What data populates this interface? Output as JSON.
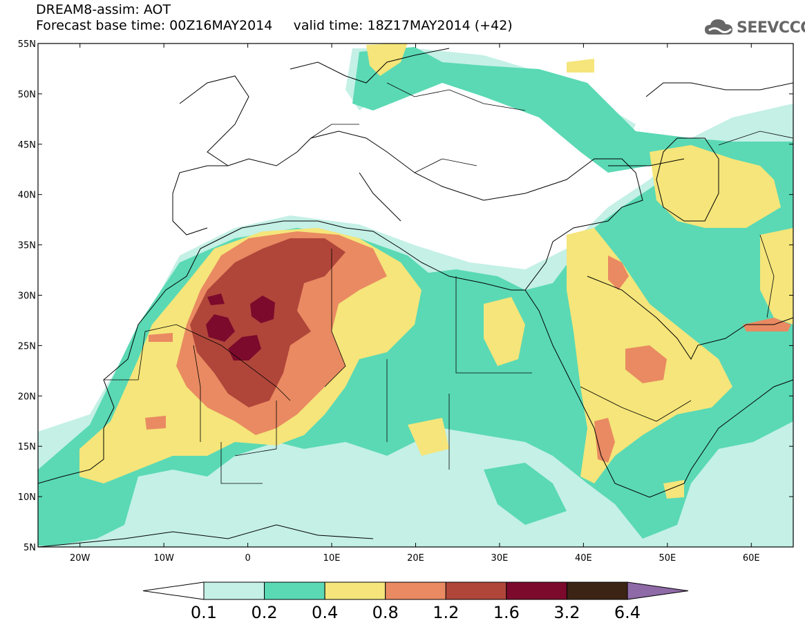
{
  "header": {
    "title_line1": "DREAM8-assim: AOT",
    "title_line2": "Forecast base time: 00Z16MAY2014     valid time: 18Z17MAY2014 (+42)"
  },
  "logo": {
    "text": "SEEVCCC",
    "icon": "cloud-icon"
  },
  "map": {
    "lon_range": [
      -25,
      65
    ],
    "lat_range": [
      5,
      55
    ],
    "lat_ticks": [
      {
        "value": 55,
        "label": "55N"
      },
      {
        "value": 50,
        "label": "50N"
      },
      {
        "value": 45,
        "label": "45N"
      },
      {
        "value": 40,
        "label": "40N"
      },
      {
        "value": 35,
        "label": "35N"
      },
      {
        "value": 30,
        "label": "30N"
      },
      {
        "value": 25,
        "label": "25N"
      },
      {
        "value": 20,
        "label": "20N"
      },
      {
        "value": 15,
        "label": "15N"
      },
      {
        "value": 10,
        "label": "10N"
      },
      {
        "value": 5,
        "label": "5N"
      }
    ],
    "lon_ticks": [
      {
        "value": -20,
        "label": "20W"
      },
      {
        "value": -10,
        "label": "10W"
      },
      {
        "value": 0,
        "label": "0"
      },
      {
        "value": 10,
        "label": "10E"
      },
      {
        "value": 20,
        "label": "20E"
      },
      {
        "value": 30,
        "label": "30E"
      },
      {
        "value": 40,
        "label": "40E"
      },
      {
        "value": 50,
        "label": "50E"
      },
      {
        "value": 60,
        "label": "60E"
      }
    ]
  },
  "colorbar": {
    "levels": [
      "0.1",
      "0.2",
      "0.4",
      "0.8",
      "1.2",
      "1.6",
      "3.2",
      "6.4"
    ],
    "colors": [
      "#ffffff",
      "#c4f0e6",
      "#5ad9b4",
      "#f5e57a",
      "#e98a62",
      "#b0463a",
      "#7c0a2c",
      "#3c2414",
      "#8e6aa6"
    ]
  }
}
